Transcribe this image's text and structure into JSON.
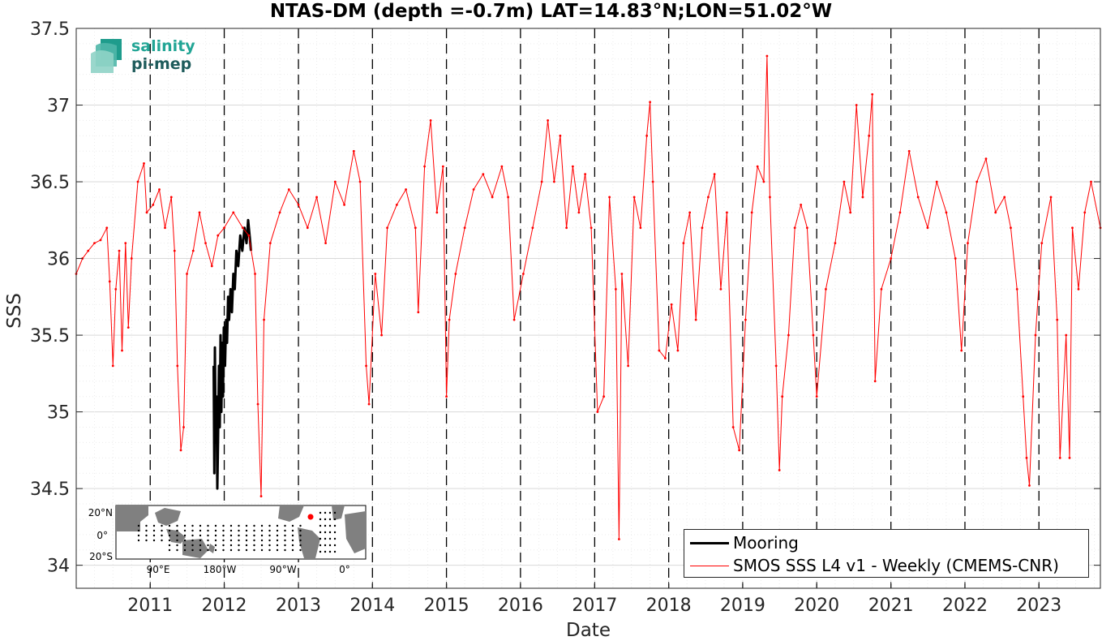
{
  "chart_data": {
    "type": "line",
    "title": "NTAS-DM (depth =-0.7m) LAT=14.83°N;LON=51.02°W",
    "xlabel": "Date",
    "ylabel": "SSS",
    "xlim": [
      "2010-01-01",
      "2023-10-31"
    ],
    "ylim": [
      33.85,
      37.5
    ],
    "yticks": [
      "34",
      "34.5",
      "35",
      "35.5",
      "36",
      "36.5",
      "37",
      "37.5"
    ],
    "xticks": [
      "2011",
      "2012",
      "2013",
      "2014",
      "2015",
      "2016",
      "2017",
      "2018",
      "2019",
      "2020",
      "2021",
      "2022",
      "2023"
    ],
    "year_boundaries": [
      "2011-01-01",
      "2012-01-01",
      "2013-01-01",
      "2014-01-01",
      "2015-01-01",
      "2016-01-01",
      "2017-01-01",
      "2018-01-01",
      "2019-01-01",
      "2020-01-01",
      "2021-01-01",
      "2022-01-01",
      "2023-01-01"
    ],
    "grid": true,
    "legend_position": "bottom-right",
    "series": [
      {
        "name": "Mooring",
        "color": "#000000",
        "points": [
          [
            "2011-11-10",
            35.3
          ],
          [
            "2011-11-13",
            34.6
          ],
          [
            "2011-11-16",
            35.42
          ],
          [
            "2011-11-20",
            34.8
          ],
          [
            "2011-11-24",
            35.1
          ],
          [
            "2011-11-28",
            34.5
          ],
          [
            "2011-12-02",
            34.85
          ],
          [
            "2011-12-06",
            35.3
          ],
          [
            "2011-12-10",
            34.9
          ],
          [
            "2011-12-14",
            35.5
          ],
          [
            "2011-12-18",
            35.0
          ],
          [
            "2011-12-22",
            35.45
          ],
          [
            "2011-12-26",
            35.1
          ],
          [
            "2011-12-30",
            35.55
          ],
          [
            "2012-01-05",
            35.3
          ],
          [
            "2012-01-10",
            35.6
          ],
          [
            "2012-01-15",
            35.45
          ],
          [
            "2012-01-20",
            35.75
          ],
          [
            "2012-01-25",
            35.6
          ],
          [
            "2012-02-01",
            35.8
          ],
          [
            "2012-02-08",
            35.65
          ],
          [
            "2012-02-15",
            35.9
          ],
          [
            "2012-02-22",
            35.8
          ],
          [
            "2012-03-01",
            36.05
          ],
          [
            "2012-03-10",
            35.95
          ],
          [
            "2012-03-20",
            36.15
          ],
          [
            "2012-03-30",
            36.05
          ],
          [
            "2012-04-10",
            36.2
          ],
          [
            "2012-04-20",
            36.1
          ],
          [
            "2012-04-28",
            36.25
          ],
          [
            "2012-05-05",
            36.15
          ],
          [
            "2012-05-12",
            36.05
          ]
        ]
      },
      {
        "name": "SMOS SSS L4 v1 - Weekly (CMEMS-CNR)",
        "color": "#ff0000",
        "points": [
          [
            "2010-01-01",
            35.9
          ],
          [
            "2010-02-01",
            36.0
          ],
          [
            "2010-03-01",
            36.05
          ],
          [
            "2010-04-01",
            36.1
          ],
          [
            "2010-05-01",
            36.12
          ],
          [
            "2010-06-01",
            36.2
          ],
          [
            "2010-06-15",
            35.85
          ],
          [
            "2010-07-01",
            35.3
          ],
          [
            "2010-07-15",
            35.8
          ],
          [
            "2010-08-01",
            36.05
          ],
          [
            "2010-08-15",
            35.4
          ],
          [
            "2010-09-01",
            36.1
          ],
          [
            "2010-09-15",
            35.55
          ],
          [
            "2010-10-01",
            36.0
          ],
          [
            "2010-11-01",
            36.5
          ],
          [
            "2010-12-01",
            36.62
          ],
          [
            "2010-12-15",
            36.3
          ],
          [
            "2011-01-15",
            36.35
          ],
          [
            "2011-02-15",
            36.45
          ],
          [
            "2011-03-15",
            36.2
          ],
          [
            "2011-04-15",
            36.4
          ],
          [
            "2011-05-01",
            36.05
          ],
          [
            "2011-05-15",
            35.3
          ],
          [
            "2011-06-01",
            34.75
          ],
          [
            "2011-06-15",
            34.9
          ],
          [
            "2011-07-01",
            35.9
          ],
          [
            "2011-08-01",
            36.05
          ],
          [
            "2011-09-01",
            36.3
          ],
          [
            "2011-10-01",
            36.1
          ],
          [
            "2011-11-01",
            35.95
          ],
          [
            "2011-12-01",
            36.15
          ],
          [
            "2012-01-01",
            36.2
          ],
          [
            "2012-02-15",
            36.3
          ],
          [
            "2012-04-01",
            36.2
          ],
          [
            "2012-05-01",
            36.15
          ],
          [
            "2012-06-01",
            35.9
          ],
          [
            "2012-06-15",
            35.05
          ],
          [
            "2012-07-01",
            34.45
          ],
          [
            "2012-07-15",
            35.6
          ],
          [
            "2012-08-15",
            36.1
          ],
          [
            "2012-10-01",
            36.3
          ],
          [
            "2012-11-15",
            36.45
          ],
          [
            "2013-01-01",
            36.35
          ],
          [
            "2013-02-15",
            36.2
          ],
          [
            "2013-04-01",
            36.4
          ],
          [
            "2013-05-15",
            36.1
          ],
          [
            "2013-07-01",
            36.5
          ],
          [
            "2013-08-15",
            36.35
          ],
          [
            "2013-10-01",
            36.7
          ],
          [
            "2013-11-01",
            36.5
          ],
          [
            "2013-12-01",
            35.3
          ],
          [
            "2013-12-15",
            35.05
          ],
          [
            "2014-01-15",
            35.9
          ],
          [
            "2014-02-15",
            35.5
          ],
          [
            "2014-03-15",
            36.2
          ],
          [
            "2014-05-01",
            36.35
          ],
          [
            "2014-06-15",
            36.45
          ],
          [
            "2014-08-01",
            36.2
          ],
          [
            "2014-08-15",
            35.65
          ],
          [
            "2014-09-15",
            36.6
          ],
          [
            "2014-10-15",
            36.9
          ],
          [
            "2014-11-15",
            36.3
          ],
          [
            "2014-12-15",
            36.6
          ],
          [
            "2015-01-01",
            35.1
          ],
          [
            "2015-01-15",
            35.6
          ],
          [
            "2015-02-15",
            35.9
          ],
          [
            "2015-04-01",
            36.2
          ],
          [
            "2015-05-15",
            36.45
          ],
          [
            "2015-07-01",
            36.55
          ],
          [
            "2015-08-15",
            36.4
          ],
          [
            "2015-10-01",
            36.6
          ],
          [
            "2015-11-01",
            36.4
          ],
          [
            "2015-12-01",
            35.6
          ],
          [
            "2016-01-15",
            35.9
          ],
          [
            "2016-03-01",
            36.2
          ],
          [
            "2016-04-15",
            36.5
          ],
          [
            "2016-05-15",
            36.9
          ],
          [
            "2016-06-15",
            36.5
          ],
          [
            "2016-07-15",
            36.8
          ],
          [
            "2016-08-15",
            36.2
          ],
          [
            "2016-09-15",
            36.6
          ],
          [
            "2016-10-15",
            36.3
          ],
          [
            "2016-11-15",
            36.55
          ],
          [
            "2016-12-15",
            36.2
          ],
          [
            "2017-01-15",
            35.0
          ],
          [
            "2017-02-15",
            35.1
          ],
          [
            "2017-03-15",
            36.4
          ],
          [
            "2017-04-15",
            35.8
          ],
          [
            "2017-05-01",
            34.17
          ],
          [
            "2017-05-15",
            35.9
          ],
          [
            "2017-06-15",
            35.3
          ],
          [
            "2017-07-15",
            36.4
          ],
          [
            "2017-08-15",
            36.2
          ],
          [
            "2017-09-15",
            36.8
          ],
          [
            "2017-10-01",
            37.02
          ],
          [
            "2017-10-15",
            36.5
          ],
          [
            "2017-11-15",
            35.4
          ],
          [
            "2017-12-15",
            35.35
          ],
          [
            "2018-01-15",
            35.7
          ],
          [
            "2018-02-15",
            35.4
          ],
          [
            "2018-03-15",
            36.1
          ],
          [
            "2018-04-15",
            36.3
          ],
          [
            "2018-05-15",
            35.6
          ],
          [
            "2018-06-15",
            36.2
          ],
          [
            "2018-07-15",
            36.4
          ],
          [
            "2018-08-15",
            36.55
          ],
          [
            "2018-09-15",
            35.8
          ],
          [
            "2018-10-15",
            36.3
          ],
          [
            "2018-11-15",
            34.9
          ],
          [
            "2018-12-15",
            34.75
          ],
          [
            "2019-01-15",
            35.6
          ],
          [
            "2019-02-15",
            36.3
          ],
          [
            "2019-03-15",
            36.6
          ],
          [
            "2019-04-15",
            36.5
          ],
          [
            "2019-05-01",
            37.32
          ],
          [
            "2019-05-15",
            36.4
          ],
          [
            "2019-06-15",
            35.3
          ],
          [
            "2019-07-01",
            34.62
          ],
          [
            "2019-07-15",
            35.1
          ],
          [
            "2019-08-15",
            35.5
          ],
          [
            "2019-09-15",
            36.2
          ],
          [
            "2019-10-15",
            36.35
          ],
          [
            "2019-11-15",
            36.2
          ],
          [
            "2019-12-15",
            35.5
          ],
          [
            "2020-01-01",
            35.1
          ],
          [
            "2020-02-15",
            35.8
          ],
          [
            "2020-04-01",
            36.1
          ],
          [
            "2020-05-15",
            36.5
          ],
          [
            "2020-06-15",
            36.3
          ],
          [
            "2020-07-15",
            37.0
          ],
          [
            "2020-08-15",
            36.4
          ],
          [
            "2020-09-15",
            36.8
          ],
          [
            "2020-10-01",
            37.07
          ],
          [
            "2020-10-15",
            35.2
          ],
          [
            "2020-11-15",
            35.8
          ],
          [
            "2021-01-01",
            36.0
          ],
          [
            "2021-02-15",
            36.3
          ],
          [
            "2021-04-01",
            36.7
          ],
          [
            "2021-05-15",
            36.4
          ],
          [
            "2021-07-01",
            36.2
          ],
          [
            "2021-08-15",
            36.5
          ],
          [
            "2021-10-01",
            36.3
          ],
          [
            "2021-11-15",
            36.0
          ],
          [
            "2021-12-15",
            35.4
          ],
          [
            "2022-01-15",
            36.1
          ],
          [
            "2022-03-01",
            36.5
          ],
          [
            "2022-04-15",
            36.65
          ],
          [
            "2022-06-01",
            36.3
          ],
          [
            "2022-07-15",
            36.4
          ],
          [
            "2022-08-15",
            36.2
          ],
          [
            "2022-09-15",
            35.8
          ],
          [
            "2022-10-15",
            35.1
          ],
          [
            "2022-11-01",
            34.7
          ],
          [
            "2022-11-15",
            34.52
          ],
          [
            "2022-12-15",
            35.5
          ],
          [
            "2023-01-15",
            36.1
          ],
          [
            "2023-03-01",
            36.4
          ],
          [
            "2023-04-01",
            35.6
          ],
          [
            "2023-04-15",
            34.7
          ],
          [
            "2023-05-15",
            35.5
          ],
          [
            "2023-06-01",
            34.7
          ],
          [
            "2023-06-15",
            36.2
          ],
          [
            "2023-07-15",
            35.8
          ],
          [
            "2023-08-15",
            36.3
          ],
          [
            "2023-09-15",
            36.5
          ],
          [
            "2023-10-31",
            36.2
          ]
        ]
      }
    ]
  },
  "logo": {
    "line1": "salinity",
    "line2": "pi-mep"
  },
  "inset_map": {
    "lat_labels": [
      "20°N",
      "0°",
      "20°S"
    ],
    "lon_labels": [
      "90°E",
      "180°W",
      "90°W",
      "0°"
    ],
    "marker_color": "#ff0000"
  }
}
